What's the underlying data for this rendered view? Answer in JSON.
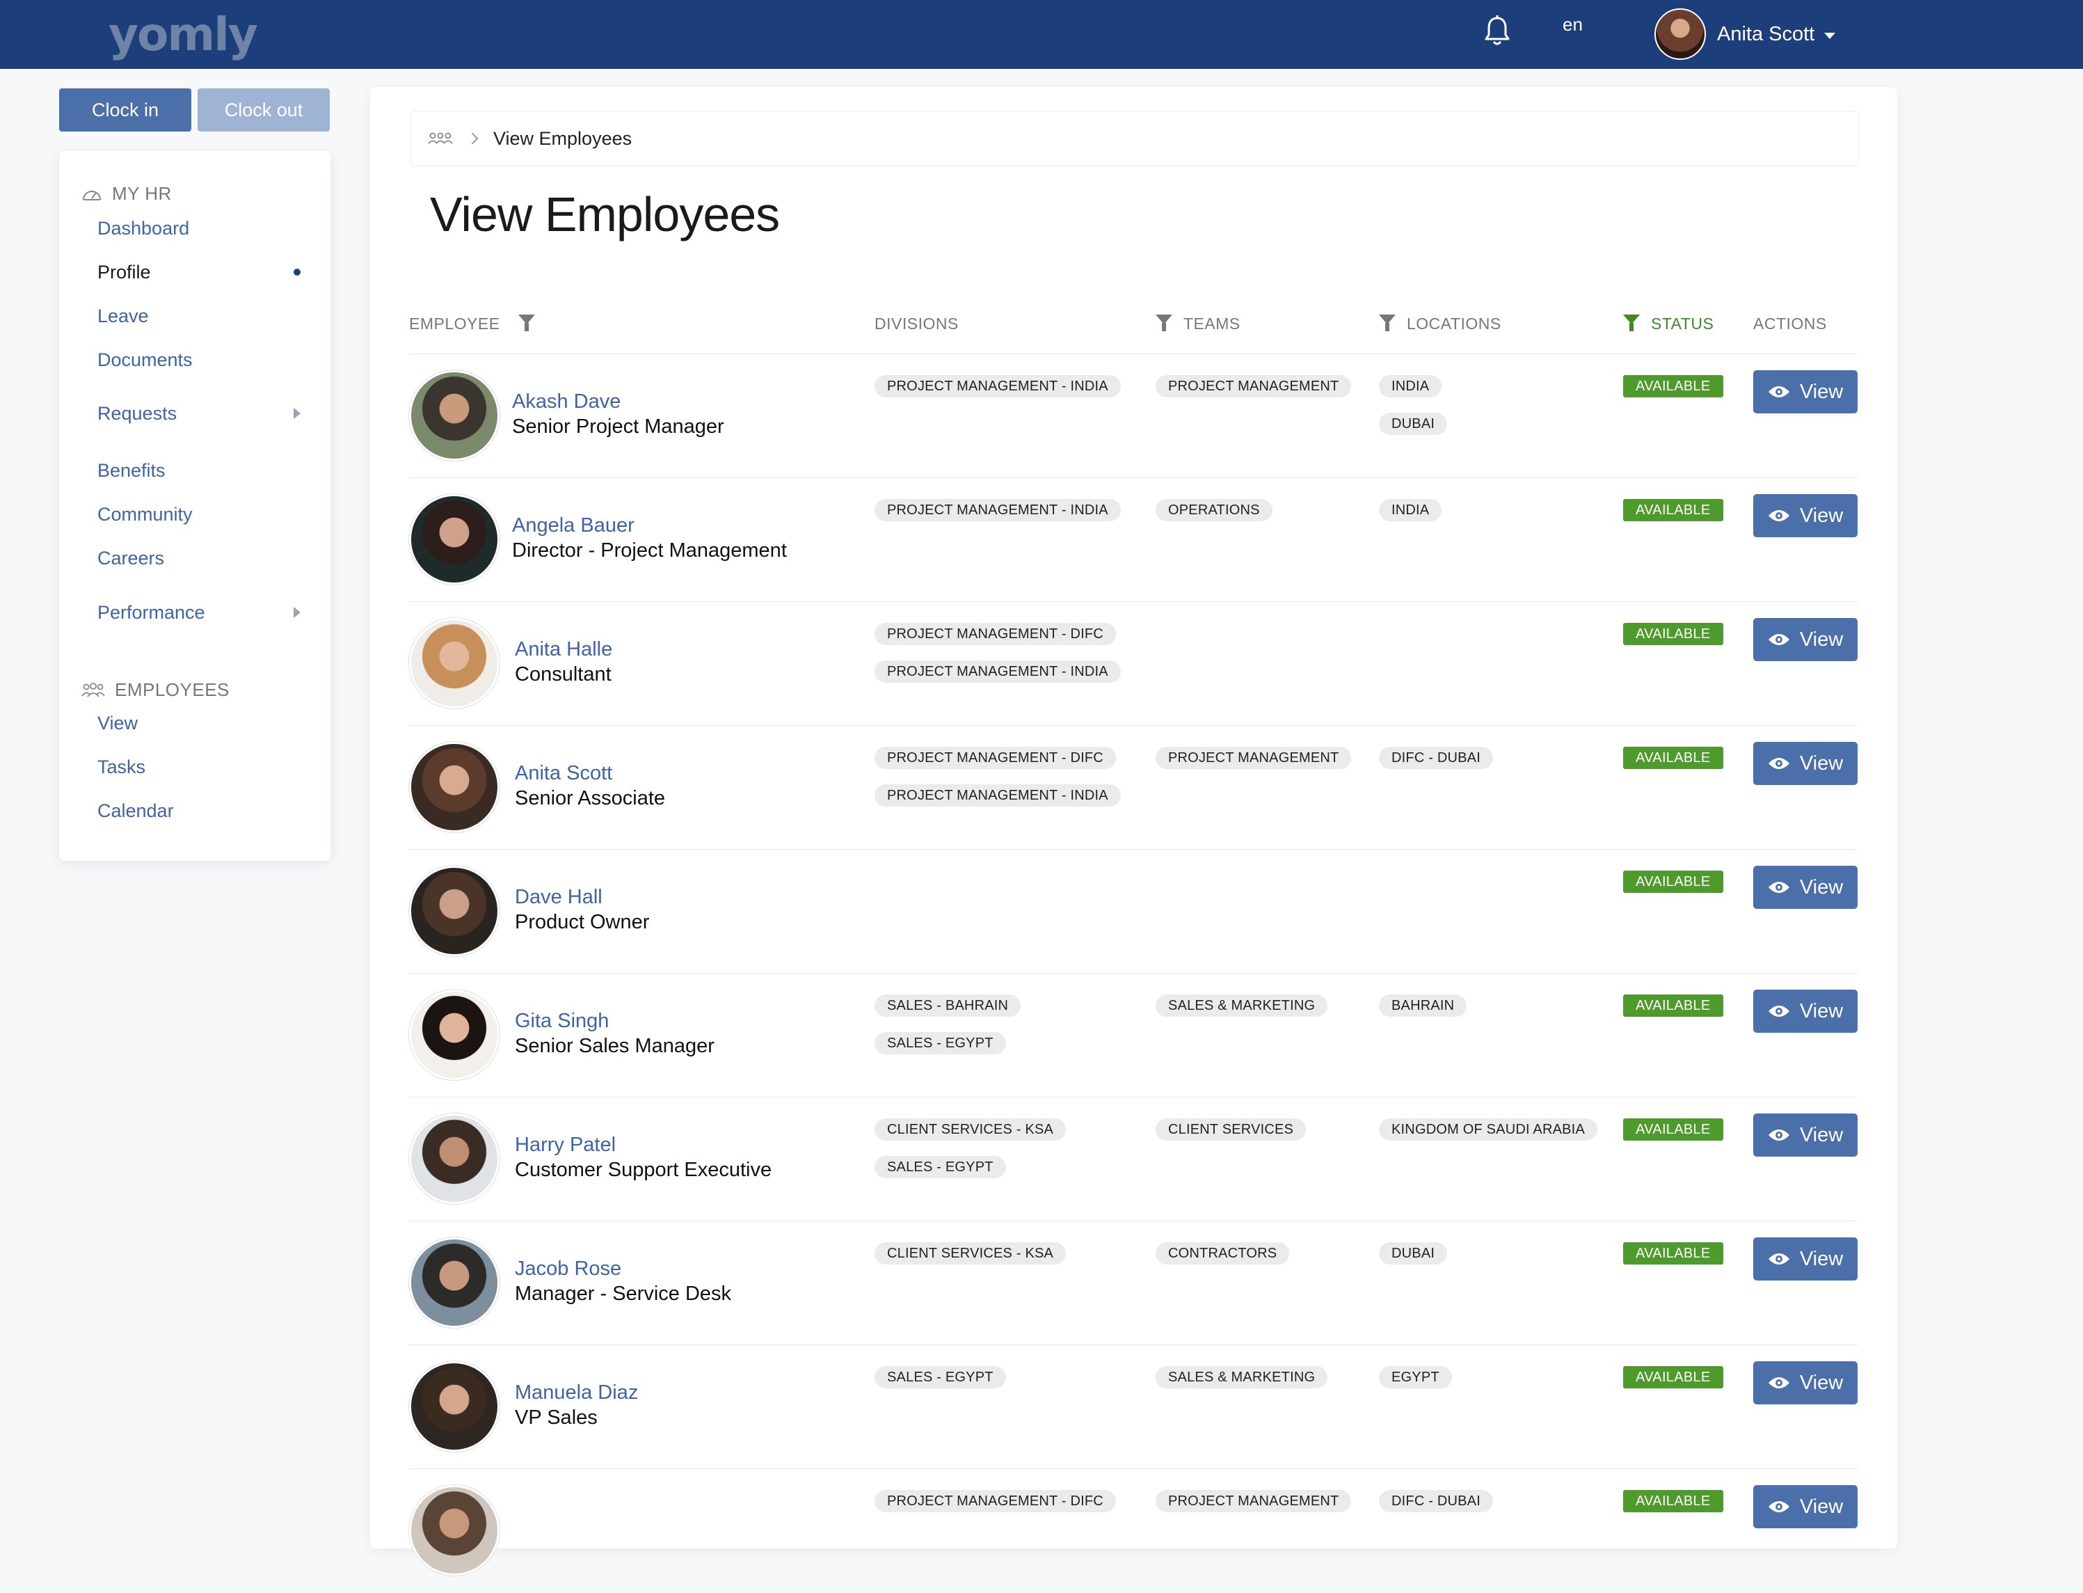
{
  "header": {
    "logo": "yomly",
    "language": "en",
    "user_name": "Anita Scott"
  },
  "sidebar": {
    "clock_in": "Clock in",
    "clock_out": "Clock out",
    "sections": [
      {
        "title": "MY HR",
        "items": [
          {
            "label": "Dashboard"
          },
          {
            "label": "Profile",
            "active": true
          },
          {
            "label": "Leave"
          },
          {
            "label": "Documents"
          },
          {
            "label": "Requests",
            "has_submenu": true
          },
          {
            "label": "Benefits"
          },
          {
            "label": "Community"
          },
          {
            "label": "Careers"
          },
          {
            "label": "Performance",
            "has_submenu": true
          }
        ]
      },
      {
        "title": "EMPLOYEES",
        "items": [
          {
            "label": "View"
          },
          {
            "label": "Tasks"
          },
          {
            "label": "Calendar"
          }
        ]
      }
    ]
  },
  "breadcrumb": {
    "current": "View Employees"
  },
  "page_title": "View Employees",
  "table": {
    "columns": {
      "employee": "EMPLOYEE",
      "divisions": "DIVISIONS",
      "teams": "TEAMS",
      "locations": "LOCATIONS",
      "status": "STATUS",
      "actions": "ACTIONS"
    },
    "view_label": "View",
    "rows": [
      {
        "name": "Akash Dave",
        "role": "Senior Project Manager",
        "divisions": [
          "PROJECT MANAGEMENT - INDIA"
        ],
        "teams": [
          "PROJECT MANAGEMENT"
        ],
        "locations": [
          "INDIA",
          "DUBAI"
        ],
        "status": "AVAILABLE"
      },
      {
        "name": "Angela Bauer",
        "role": "Director - Project Management",
        "divisions": [
          "PROJECT MANAGEMENT - INDIA"
        ],
        "teams": [
          "OPERATIONS"
        ],
        "locations": [
          "INDIA"
        ],
        "status": "AVAILABLE"
      },
      {
        "name": "Anita Halle",
        "role": "Consultant",
        "divisions": [
          "PROJECT MANAGEMENT - DIFC",
          "PROJECT MANAGEMENT - INDIA"
        ],
        "teams": [],
        "locations": [],
        "status": "AVAILABLE"
      },
      {
        "name": "Anita Scott",
        "role": "Senior Associate",
        "divisions": [
          "PROJECT MANAGEMENT - DIFC",
          "PROJECT MANAGEMENT - INDIA"
        ],
        "teams": [
          "PROJECT MANAGEMENT"
        ],
        "locations": [
          "DIFC - DUBAI"
        ],
        "status": "AVAILABLE"
      },
      {
        "name": "Dave Hall",
        "role": "Product Owner",
        "divisions": [],
        "teams": [],
        "locations": [],
        "status": "AVAILABLE"
      },
      {
        "name": "Gita Singh",
        "role": "Senior Sales Manager",
        "divisions": [
          "SALES - BAHRAIN",
          "SALES - EGYPT"
        ],
        "teams": [
          "SALES & MARKETING"
        ],
        "locations": [
          "BAHRAIN"
        ],
        "status": "AVAILABLE"
      },
      {
        "name": "Harry Patel",
        "role": "Customer Support Executive",
        "divisions": [
          "CLIENT SERVICES - KSA",
          "SALES - EGYPT"
        ],
        "teams": [
          "CLIENT SERVICES"
        ],
        "locations": [
          "KINGDOM OF SAUDI ARABIA"
        ],
        "status": "AVAILABLE"
      },
      {
        "name": "Jacob Rose",
        "role": "Manager - Service Desk",
        "divisions": [
          "CLIENT SERVICES - KSA"
        ],
        "teams": [
          "CONTRACTORS"
        ],
        "locations": [
          "DUBAI"
        ],
        "status": "AVAILABLE"
      },
      {
        "name": "Manuela Diaz",
        "role": "VP Sales",
        "divisions": [
          "SALES - EGYPT"
        ],
        "teams": [
          "SALES & MARKETING"
        ],
        "locations": [
          "EGYPT"
        ],
        "status": "AVAILABLE"
      },
      {
        "name": "",
        "role": "",
        "divisions": [
          "PROJECT MANAGEMENT - DIFC"
        ],
        "teams": [
          "PROJECT MANAGEMENT"
        ],
        "locations": [
          "DIFC - DUBAI"
        ],
        "status": "AVAILABLE"
      }
    ]
  },
  "colors": {
    "topbar": "#1c3e7a",
    "accent": "#4a6fa9",
    "link": "#3e64a6",
    "status_available": "#4f9a2d"
  }
}
